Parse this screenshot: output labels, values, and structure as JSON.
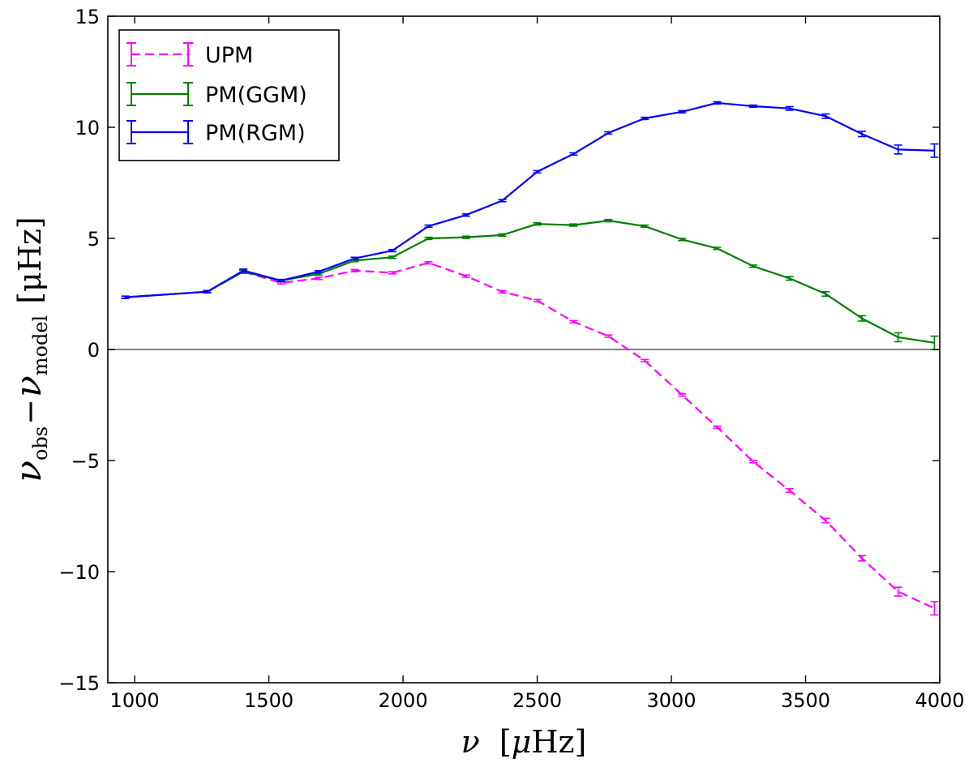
{
  "chart_data": {
    "type": "line",
    "title": "",
    "xlabel": "ν [μHz]",
    "ylabel": "ν_obs − ν_model [μHz]",
    "ylabel_parts": {
      "nu1": "ν",
      "sub1": "obs",
      "minus": "−",
      "nu2": "ν",
      "sub2": "model",
      "unit": "[μHz]"
    },
    "xlim": [
      900,
      4000
    ],
    "ylim": [
      -15,
      15
    ],
    "xticks": [
      1000,
      1500,
      2000,
      2500,
      3000,
      3500,
      4000
    ],
    "yticks": [
      -15,
      -10,
      -5,
      0,
      5,
      10,
      15
    ],
    "xtick_labels": [
      "1000",
      "1500",
      "2000",
      "2500",
      "3000",
      "3500",
      "4000"
    ],
    "ytick_labels": [
      "−15",
      "−10",
      "−5",
      "0",
      "5",
      "10",
      "15"
    ],
    "zero_line": true,
    "grid": false,
    "legend_position": "top-left",
    "series": [
      {
        "name": "UPM",
        "color": "#ff00ff",
        "dashed": true,
        "x": [
          965,
          1270,
          1405,
          1545,
          1685,
          1820,
          1960,
          2095,
          2235,
          2370,
          2500,
          2635,
          2765,
          2900,
          3040,
          3170,
          3305,
          3440,
          3575,
          3710,
          3845,
          3980
        ],
        "y": [
          2.35,
          2.6,
          3.5,
          3.0,
          3.2,
          3.55,
          3.45,
          3.9,
          3.3,
          2.6,
          2.2,
          1.25,
          0.6,
          -0.5,
          -2.05,
          -3.5,
          -5.05,
          -6.35,
          -7.7,
          -9.4,
          -10.9,
          -11.65
        ],
        "err": [
          0.05,
          0.05,
          0.07,
          0.05,
          0.05,
          0.05,
          0.05,
          0.05,
          0.05,
          0.05,
          0.05,
          0.05,
          0.05,
          0.05,
          0.05,
          0.05,
          0.05,
          0.08,
          0.1,
          0.12,
          0.2,
          0.3
        ]
      },
      {
        "name": "PM(GGM)",
        "color": "#007f00",
        "dashed": false,
        "x": [
          965,
          1270,
          1405,
          1545,
          1685,
          1820,
          1960,
          2095,
          2235,
          2370,
          2500,
          2635,
          2765,
          2900,
          3040,
          3170,
          3305,
          3440,
          3575,
          3710,
          3845,
          3980
        ],
        "y": [
          2.35,
          2.6,
          3.5,
          3.1,
          3.4,
          4.0,
          4.15,
          5.0,
          5.05,
          5.15,
          5.65,
          5.6,
          5.8,
          5.55,
          4.95,
          4.55,
          3.75,
          3.2,
          2.5,
          1.4,
          0.55,
          0.3
        ],
        "err": [
          0.05,
          0.05,
          0.07,
          0.05,
          0.05,
          0.05,
          0.05,
          0.05,
          0.05,
          0.05,
          0.05,
          0.05,
          0.05,
          0.05,
          0.05,
          0.05,
          0.05,
          0.08,
          0.1,
          0.12,
          0.2,
          0.3
        ]
      },
      {
        "name": "PM(RGM)",
        "color": "#0000ff",
        "dashed": false,
        "x": [
          965,
          1270,
          1405,
          1545,
          1685,
          1820,
          1960,
          2095,
          2235,
          2370,
          2500,
          2635,
          2765,
          2900,
          3040,
          3170,
          3305,
          3440,
          3575,
          3710,
          3845,
          3980
        ],
        "y": [
          2.35,
          2.6,
          3.55,
          3.1,
          3.5,
          4.1,
          4.45,
          5.55,
          6.05,
          6.7,
          8.0,
          8.8,
          9.75,
          10.4,
          10.7,
          11.1,
          10.95,
          10.85,
          10.5,
          9.7,
          9.0,
          8.95
        ],
        "err": [
          0.05,
          0.05,
          0.07,
          0.05,
          0.05,
          0.05,
          0.05,
          0.05,
          0.05,
          0.05,
          0.05,
          0.05,
          0.05,
          0.05,
          0.05,
          0.05,
          0.05,
          0.08,
          0.1,
          0.12,
          0.2,
          0.3
        ]
      }
    ]
  }
}
